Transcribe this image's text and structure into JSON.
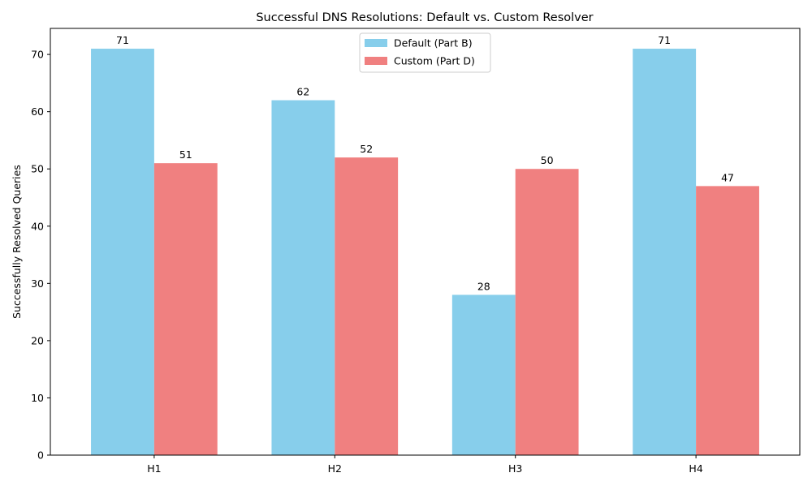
{
  "chart_data": {
    "type": "bar",
    "title": "Successful DNS Resolutions: Default vs. Custom Resolver",
    "xlabel": "",
    "ylabel": "Successfully Resolved Queries",
    "categories": [
      "H1",
      "H2",
      "H3",
      "H4"
    ],
    "series": [
      {
        "name": "Default (Part B)",
        "values": [
          71,
          62,
          28,
          71
        ],
        "color": "#87ceeb"
      },
      {
        "name": "Custom (Part D)",
        "values": [
          51,
          52,
          50,
          47
        ],
        "color": "#f08080"
      }
    ],
    "ylim": [
      0,
      74.55
    ],
    "yticks": [
      0,
      10,
      20,
      30,
      40,
      50,
      60,
      70
    ],
    "legend_position": "top-center",
    "grid": false
  }
}
